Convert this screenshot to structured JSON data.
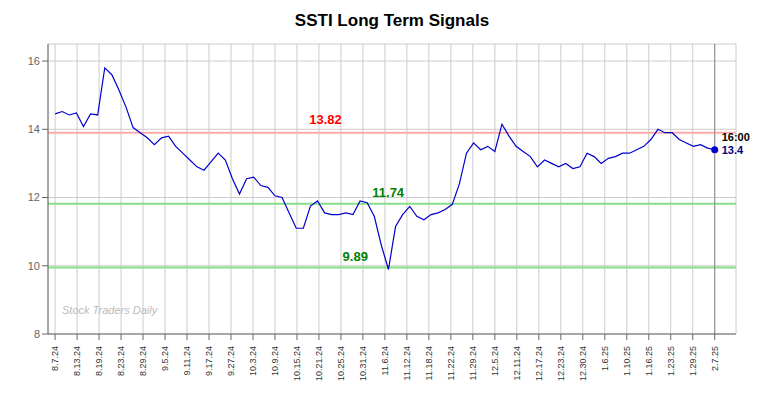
{
  "chart_data": {
    "type": "line",
    "title": "SSTI Long Term Signals",
    "x": [
      0,
      1,
      2,
      3,
      4,
      5,
      6,
      7,
      8,
      9,
      10,
      11,
      12,
      13,
      14,
      15,
      16,
      17,
      18,
      19,
      20,
      21,
      22,
      23,
      24,
      25,
      26,
      27,
      28,
      29,
      30,
      31,
      32,
      33,
      34,
      35,
      36,
      37,
      38,
      39,
      40,
      41,
      42,
      43,
      44,
      45,
      46,
      47,
      48,
      49,
      50,
      51,
      52,
      53,
      54,
      55,
      56,
      57,
      58,
      59,
      60,
      61,
      62,
      63,
      64,
      65,
      66,
      67,
      68,
      69,
      70,
      71,
      72,
      73,
      74,
      75,
      76,
      77,
      78,
      79,
      80,
      81,
      82,
      83,
      84,
      85,
      86,
      87,
      88,
      89,
      90,
      91,
      92,
      93
    ],
    "values": [
      14.45,
      14.52,
      14.42,
      14.48,
      14.08,
      14.45,
      14.42,
      15.8,
      15.6,
      15.15,
      14.65,
      14.05,
      13.9,
      13.75,
      13.55,
      13.75,
      13.8,
      13.5,
      13.3,
      13.1,
      12.9,
      12.8,
      13.05,
      13.3,
      13.1,
      12.55,
      12.1,
      12.55,
      12.6,
      12.35,
      12.3,
      12.05,
      12.0,
      11.55,
      11.1,
      11.1,
      11.75,
      11.9,
      11.55,
      11.5,
      11.5,
      11.55,
      11.5,
      11.9,
      11.85,
      11.45,
      10.6,
      9.89,
      11.15,
      11.5,
      11.74,
      11.45,
      11.35,
      11.5,
      11.55,
      11.65,
      11.8,
      12.4,
      13.3,
      13.6,
      13.4,
      13.5,
      13.35,
      14.15,
      13.8,
      13.5,
      13.35,
      13.2,
      12.9,
      13.1,
      13.0,
      12.9,
      13.0,
      12.85,
      12.9,
      13.3,
      13.2,
      13.0,
      13.15,
      13.2,
      13.3,
      13.3,
      13.4,
      13.5,
      13.7,
      14.0,
      13.9,
      13.9,
      13.7,
      13.6,
      13.5,
      13.55,
      13.45,
      13.4
    ],
    "color": "#0000cc",
    "xlim": [
      -1,
      96
    ],
    "xticks": [
      {
        "value": 0,
        "label": "8.7.24"
      },
      {
        "value": 3.1,
        "label": "8.13.24"
      },
      {
        "value": 6.2,
        "label": "8.19.24"
      },
      {
        "value": 9.3,
        "label": "8.23.24"
      },
      {
        "value": 12.4,
        "label": "8.29.24"
      },
      {
        "value": 15.5,
        "label": "9.5.24"
      },
      {
        "value": 18.6,
        "label": "9.11.24"
      },
      {
        "value": 21.7,
        "label": "9.17.24"
      },
      {
        "value": 24.8,
        "label": "9.27.24"
      },
      {
        "value": 27.9,
        "label": "10.3.24"
      },
      {
        "value": 31,
        "label": "10.9.24"
      },
      {
        "value": 34.1,
        "label": "10.15.24"
      },
      {
        "value": 37.2,
        "label": "10.21.24"
      },
      {
        "value": 40.3,
        "label": "10.25.24"
      },
      {
        "value": 43.4,
        "label": "10.31.24"
      },
      {
        "value": 46.5,
        "label": "11.6.24"
      },
      {
        "value": 49.6,
        "label": "11.12.24"
      },
      {
        "value": 52.7,
        "label": "11.18.24"
      },
      {
        "value": 55.8,
        "label": "11.22.24"
      },
      {
        "value": 58.9,
        "label": "11.29.24"
      },
      {
        "value": 62,
        "label": "12.5.24"
      },
      {
        "value": 65.1,
        "label": "12.11.24"
      },
      {
        "value": 68.2,
        "label": "12.17.24"
      },
      {
        "value": 71.3,
        "label": "12.23.24"
      },
      {
        "value": 74.4,
        "label": "12.30.24"
      },
      {
        "value": 77.5,
        "label": "1.6.25"
      },
      {
        "value": 80.6,
        "label": "1.10.25"
      },
      {
        "value": 83.7,
        "label": "1.16.25"
      },
      {
        "value": 86.8,
        "label": "1.23.25"
      },
      {
        "value": 89.9,
        "label": "1.29.25"
      },
      {
        "value": 93,
        "label": "2.7.25"
      }
    ],
    "ylim": [
      8,
      16.5
    ],
    "yticks": [
      8,
      10,
      12,
      14,
      16
    ],
    "grid": true,
    "grid_color": "#cccccc",
    "hlines": [
      {
        "y": 13.9,
        "color": "#ffaaaa"
      },
      {
        "y": 11.82,
        "color": "#88dd88"
      },
      {
        "y": 9.95,
        "color": "#88dd88"
      }
    ],
    "vlines": [
      {
        "x": 93,
        "color": "#888888"
      }
    ],
    "annotations": [
      {
        "text": "13.82",
        "x": 38.13,
        "y": 13.9,
        "color": "red"
      },
      {
        "text": "11.74",
        "x": 46.965,
        "y": 11.74,
        "color": "green"
      },
      {
        "text": "9.89",
        "x": 42.315,
        "y": 9.89,
        "color": "green"
      }
    ],
    "end_labels": [
      {
        "text": "16:00",
        "color": "black"
      },
      {
        "text": "13.4",
        "color": "navy"
      }
    ],
    "watermark": "Stock Traders Daily"
  }
}
